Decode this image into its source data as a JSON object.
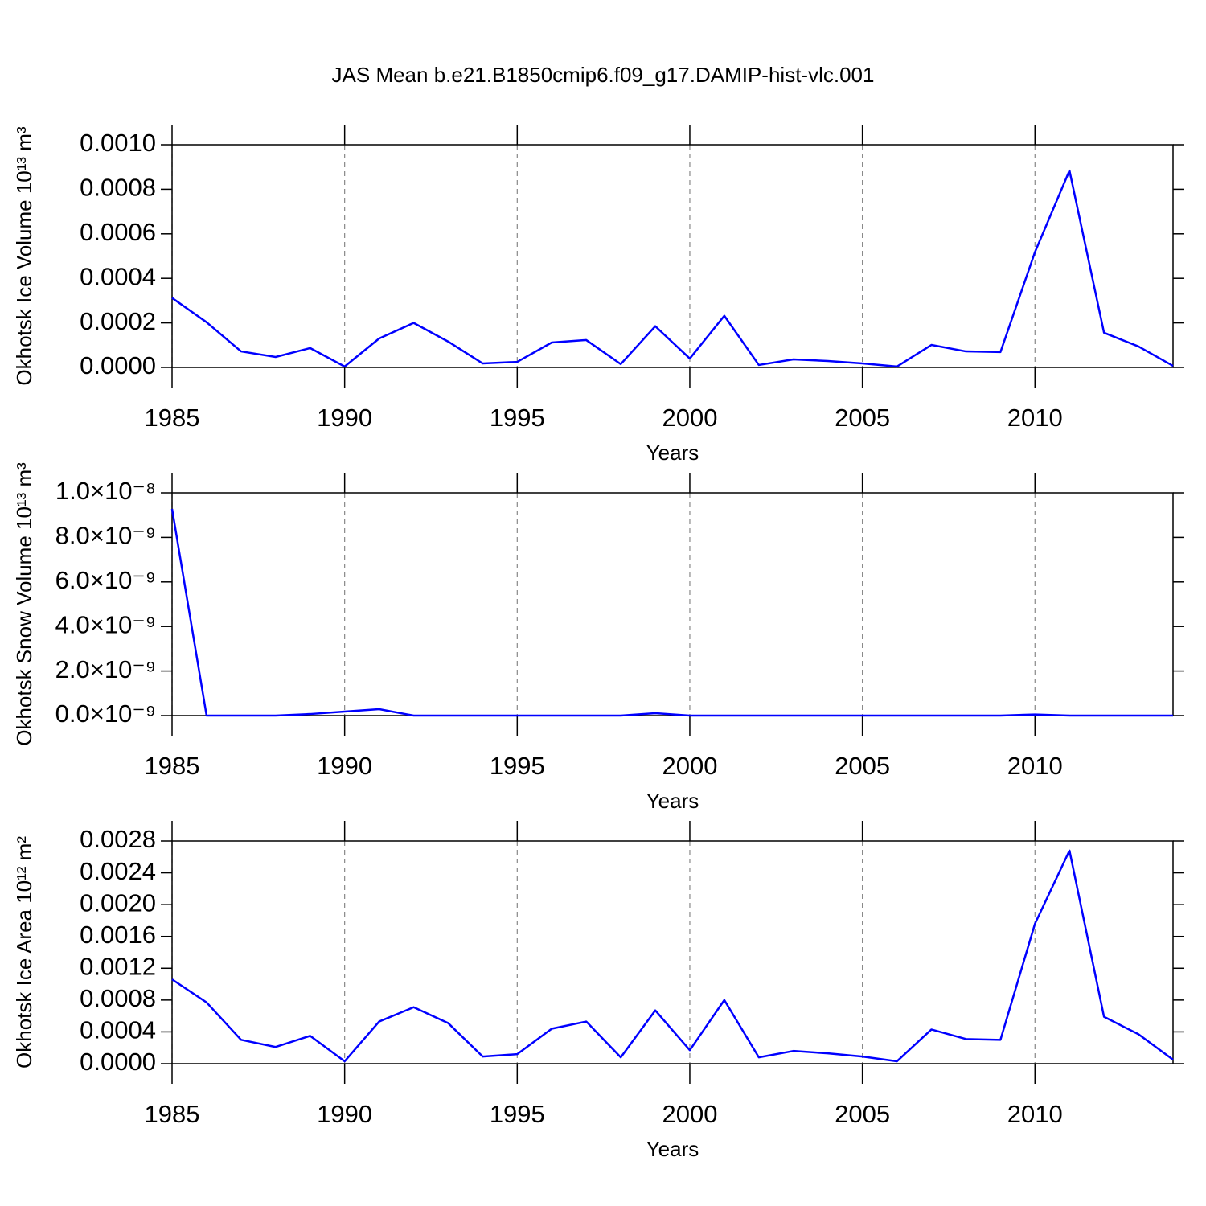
{
  "chart_data": [
    {
      "type": "line",
      "title": "JAS Mean b.e21.B1850cmip6.f09_g17.DAMIP-hist-vlc.001",
      "ylabel": "Okhotsk Ice Volume 10¹³ m³",
      "xlabel": "Years",
      "x": [
        1985,
        1986,
        1987,
        1988,
        1989,
        1990,
        1991,
        1992,
        1993,
        1994,
        1995,
        1996,
        1997,
        1998,
        1999,
        2000,
        2001,
        2002,
        2003,
        2004,
        2005,
        2006,
        2007,
        2008,
        2009,
        2010,
        2011,
        2012,
        2013,
        2014
      ],
      "values": [
        0.000312,
        0.000203,
        7.2e-05,
        4.7e-05,
        8.7e-05,
        4e-06,
        0.00013,
        0.0002,
        0.000116,
        1.8e-05,
        2.5e-05,
        0.000112,
        0.000123,
        1.5e-05,
        0.000185,
        4e-05,
        0.000232,
        1.1e-05,
        3.6e-05,
        2.9e-05,
        1.8e-05,
        4e-06,
        0.000101,
        7.2e-05,
        6.9e-05,
        0.000518,
        0.000884,
        0.000156,
        9.4e-05,
        7e-06
      ],
      "color": "#0000ff",
      "xlim": [
        1985,
        2014
      ],
      "ylim": [
        0,
        0.001
      ],
      "xticks": [
        1985,
        1990,
        1995,
        2000,
        2005,
        2010
      ],
      "yticks": [
        {
          "value": 0,
          "label": "0.0000"
        },
        {
          "value": 0.0002,
          "label": "0.0002"
        },
        {
          "value": 0.0004,
          "label": "0.0004"
        },
        {
          "value": 0.0006,
          "label": "0.0006"
        },
        {
          "value": 0.0008,
          "label": "0.0008"
        },
        {
          "value": 0.001,
          "label": "0.0010"
        }
      ],
      "grid": "x"
    },
    {
      "type": "line",
      "ylabel": "Okhotsk Snow Volume 10¹³ m³",
      "xlabel": "Years",
      "x": [
        1985,
        1986,
        1987,
        1988,
        1989,
        1990,
        1991,
        1992,
        1993,
        1994,
        1995,
        1996,
        1997,
        1998,
        1999,
        2000,
        2001,
        2002,
        2003,
        2004,
        2005,
        2006,
        2007,
        2008,
        2009,
        2010,
        2011,
        2012,
        2013,
        2014
      ],
      "values": [
        9.28e-09,
        0,
        0,
        0,
        7e-11,
        1.8e-10,
        2.9e-10,
        0,
        0,
        0,
        0,
        0,
        0,
        0,
        1.1e-10,
        0,
        0,
        0,
        0,
        0,
        0,
        0,
        0,
        0,
        0,
        5e-11,
        0,
        0,
        0,
        0
      ],
      "color": "#0000ff",
      "xlim": [
        1985,
        2014
      ],
      "ylim": [
        0,
        1e-08
      ],
      "xticks": [
        1985,
        1990,
        1995,
        2000,
        2005,
        2010
      ],
      "yticks": [
        {
          "value": 0,
          "label": "0.0×10⁻⁹"
        },
        {
          "value": 2e-09,
          "label": "2.0×10⁻⁹"
        },
        {
          "value": 4e-09,
          "label": "4.0×10⁻⁹"
        },
        {
          "value": 6e-09,
          "label": "6.0×10⁻⁹"
        },
        {
          "value": 8e-09,
          "label": "8.0×10⁻⁹"
        },
        {
          "value": 1e-08,
          "label": "1.0×10⁻⁸"
        }
      ],
      "grid": "x"
    },
    {
      "type": "line",
      "ylabel": "Okhotsk Ice Area 10¹² m²",
      "xlabel": "Years",
      "x": [
        1985,
        1986,
        1987,
        1988,
        1989,
        1990,
        1991,
        1992,
        1993,
        1994,
        1995,
        1996,
        1997,
        1998,
        1999,
        2000,
        2001,
        2002,
        2003,
        2004,
        2005,
        2006,
        2007,
        2008,
        2009,
        2010,
        2011,
        2012,
        2013,
        2014
      ],
      "values": [
        0.00106,
        0.00077,
        0.0003,
        0.00021,
        0.00035,
        3e-05,
        0.00053,
        0.00071,
        0.00051,
        9e-05,
        0.00012,
        0.00044,
        0.00053,
        8e-05,
        0.00067,
        0.00017,
        0.0008,
        8e-05,
        0.00016,
        0.00013,
        9e-05,
        3e-05,
        0.00043,
        0.00031,
        0.0003,
        0.00176,
        0.00268,
        0.00059,
        0.00037,
        5e-05
      ],
      "color": "#0000ff",
      "xlim": [
        1985,
        2014
      ],
      "ylim": [
        0,
        0.0028
      ],
      "xticks": [
        1985,
        1990,
        1995,
        2000,
        2005,
        2010
      ],
      "yticks": [
        {
          "value": 0,
          "label": "0.0000"
        },
        {
          "value": 0.0004,
          "label": "0.0004"
        },
        {
          "value": 0.0008,
          "label": "0.0008"
        },
        {
          "value": 0.0012,
          "label": "0.0012"
        },
        {
          "value": 0.0016,
          "label": "0.0016"
        },
        {
          "value": 0.002,
          "label": "0.0020"
        },
        {
          "value": 0.0024,
          "label": "0.0024"
        },
        {
          "value": 0.0028,
          "label": "0.0028"
        }
      ],
      "grid": "x"
    }
  ]
}
